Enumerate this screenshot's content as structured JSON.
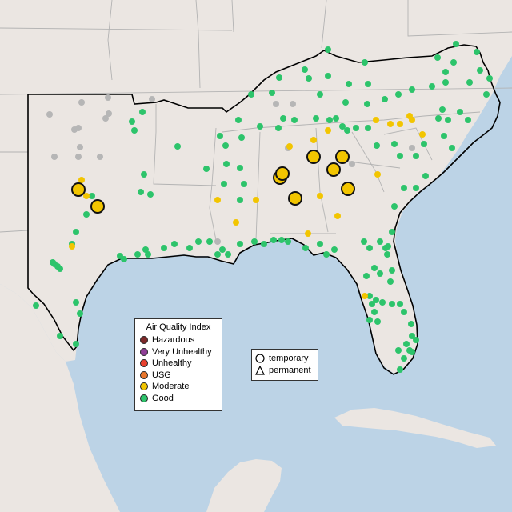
{
  "legend": {
    "title": "Air Quality Index",
    "categories": [
      {
        "label": "Hazardous",
        "color": "#7e2a2a"
      },
      {
        "label": "Very Unhealthy",
        "color": "#8f3f97"
      },
      {
        "label": "Unhealthy",
        "color": "#e8412f"
      },
      {
        "label": "USG",
        "color": "#e8762c"
      },
      {
        "label": "Moderate",
        "color": "#f2c500"
      },
      {
        "label": "Good",
        "color": "#2dc46b"
      }
    ]
  },
  "type_legend": {
    "temporary": "temporary",
    "permanent": "permanent"
  },
  "colors": {
    "ocean": "#bcd3e6",
    "land": "#ebe6e2",
    "gray": "#b6b6b6"
  }
}
